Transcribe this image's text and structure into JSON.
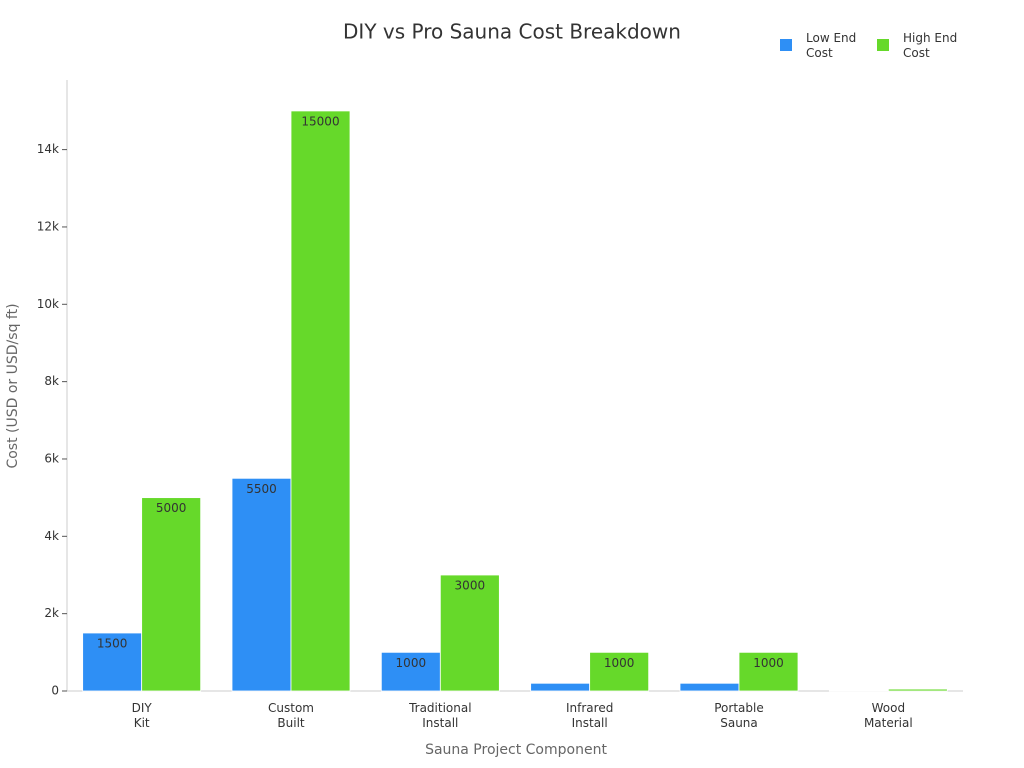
{
  "chart_data": {
    "type": "bar",
    "title": "DIY vs Pro Sauna Cost Breakdown",
    "x_label": "Sauna Project Component",
    "y_label": "Cost (USD or USD/sq ft)",
    "categories": [
      [
        "DIY",
        "Kit"
      ],
      [
        "Custom",
        "Built"
      ],
      [
        "Traditional",
        "Install"
      ],
      [
        "Infrared",
        "Install"
      ],
      [
        "Portable",
        "Sauna"
      ],
      [
        "Wood",
        "Material"
      ]
    ],
    "series": [
      {
        "name": [
          "Low End",
          "Cost"
        ],
        "color": "#2e8ff5",
        "values": [
          1500,
          5500,
          1000,
          200,
          200,
          10
        ]
      },
      {
        "name": [
          "High End",
          "Cost"
        ],
        "color": "#66d92a",
        "values": [
          5000,
          15000,
          3000,
          1000,
          1000,
          50
        ]
      }
    ],
    "ylim": [
      0,
      15800
    ],
    "yticks": [
      0,
      {
        "value": 2000,
        "label": "2k"
      },
      {
        "value": 4000,
        "label": "4k"
      },
      {
        "value": 6000,
        "label": "6k"
      },
      {
        "value": 8000,
        "label": "8k"
      },
      {
        "value": 10000,
        "label": "10k"
      },
      {
        "value": 12000,
        "label": "12k"
      },
      {
        "value": 14000,
        "label": "14k"
      }
    ],
    "legend": "top-right"
  }
}
